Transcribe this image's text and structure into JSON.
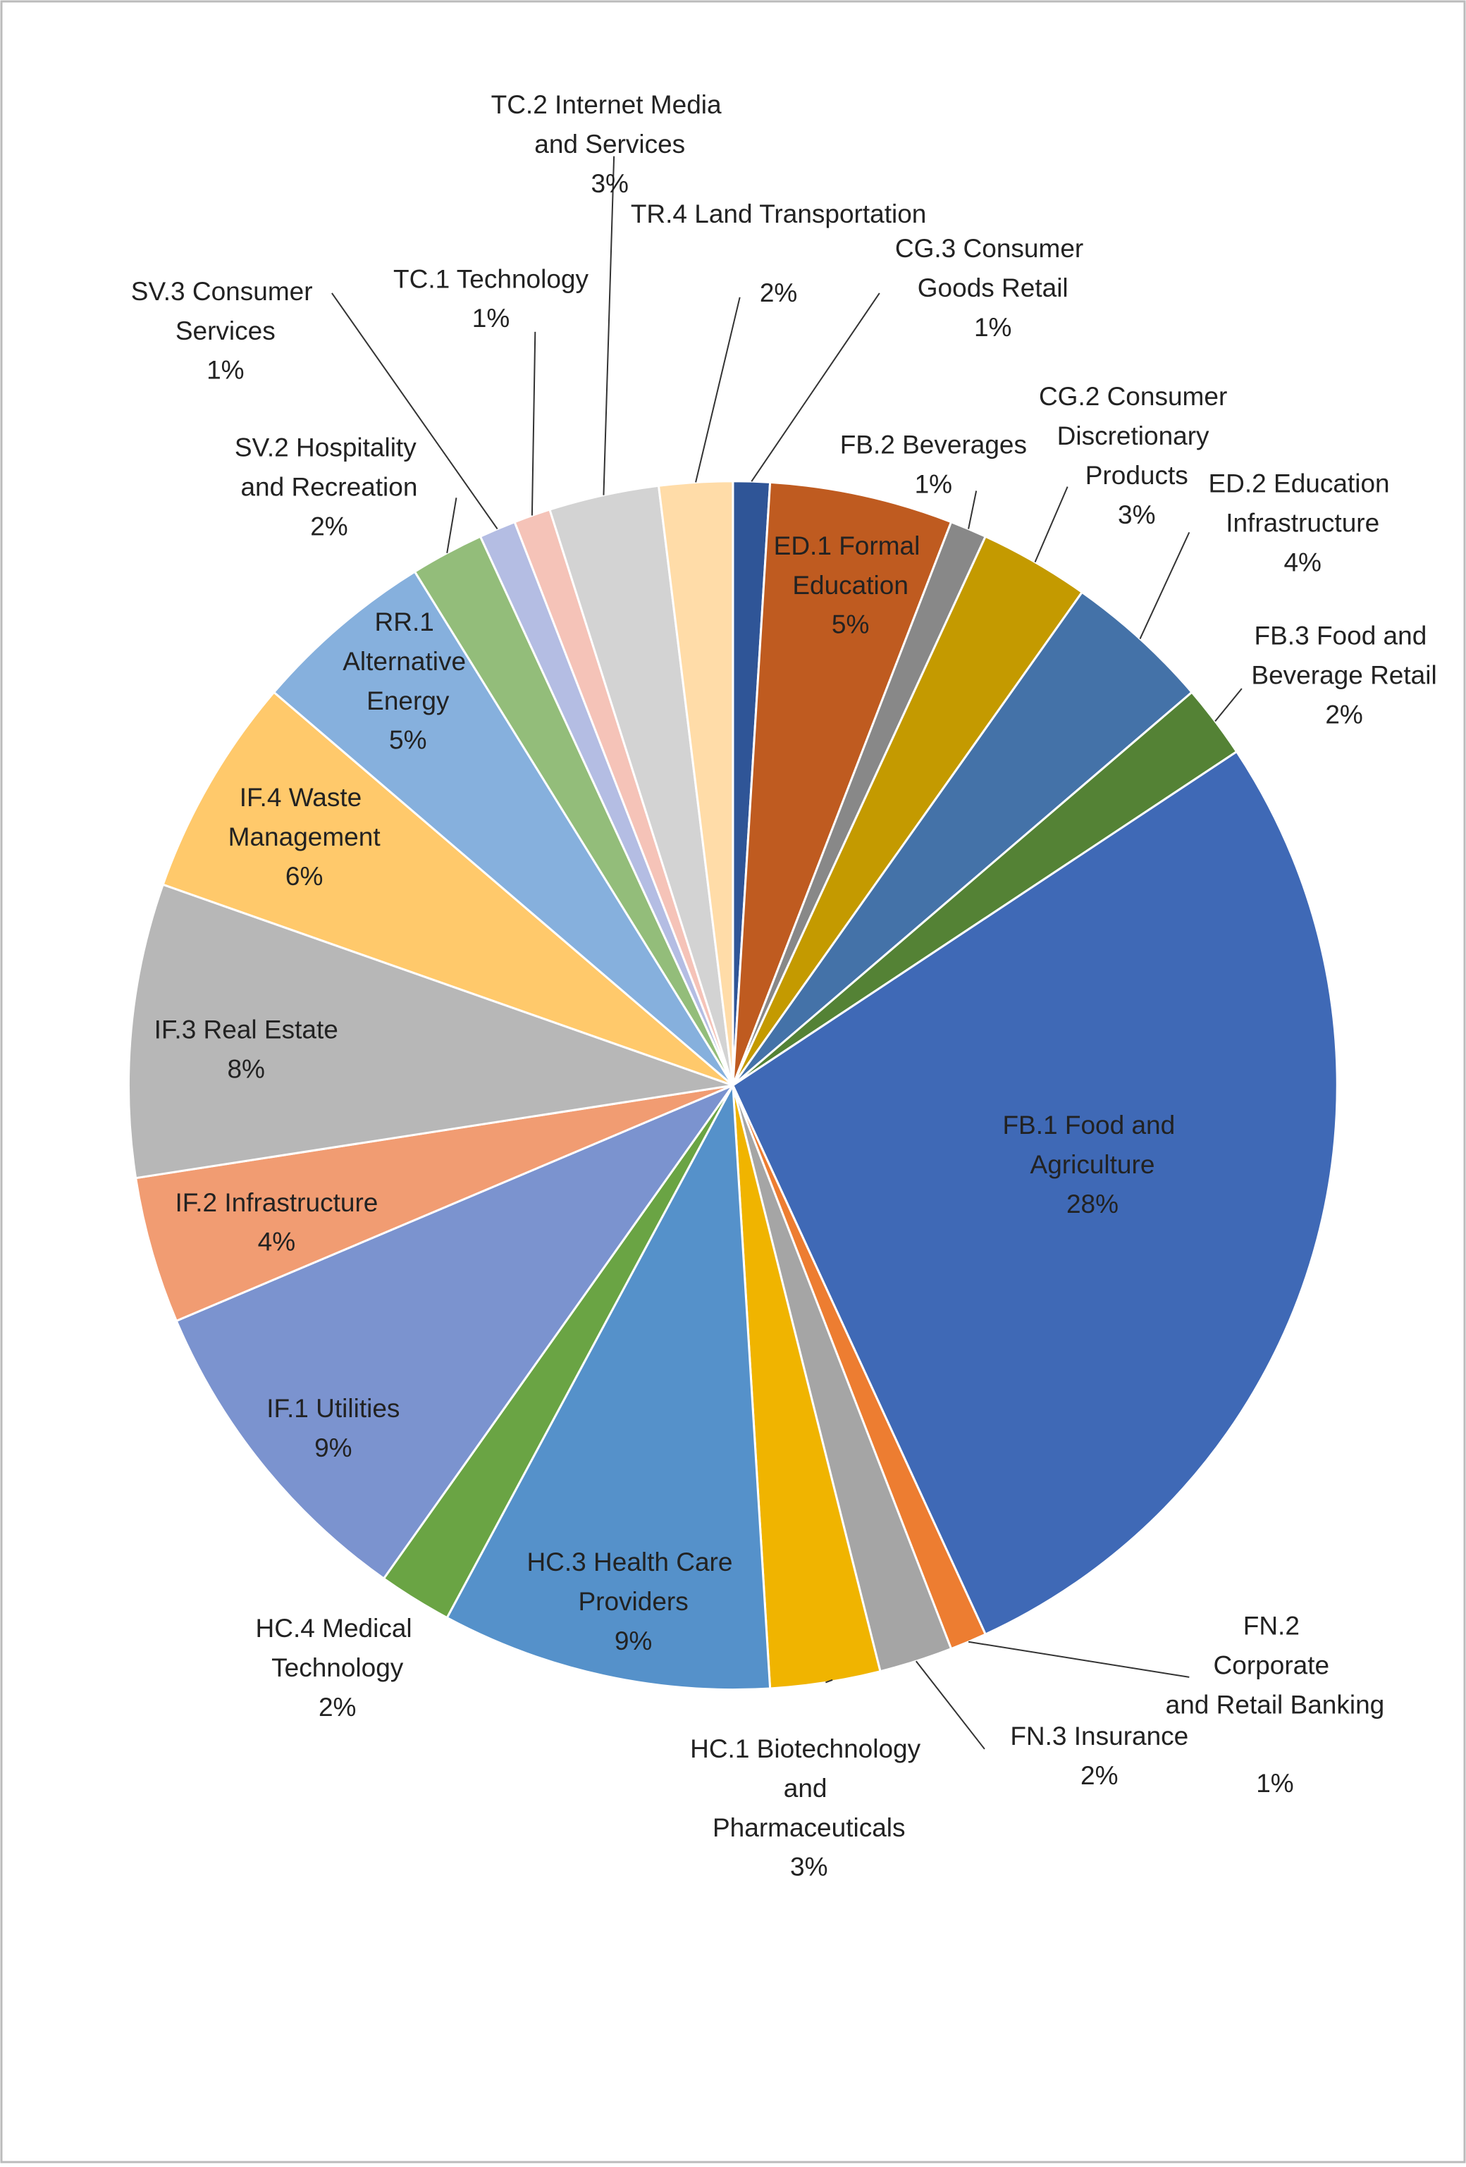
{
  "chart_data": {
    "type": "pie",
    "categories": [
      "CG.3 Consumer Goods Retail",
      "ED.1 Formal Education",
      "FB.2 Beverages",
      "CG.2 Consumer Discretionary Products",
      "ED.2 Education Infrastructure",
      "FB.3 Food and Beverage Retail",
      "FB.1 Food and Agriculture",
      "FN.2 Corporate and Retail Banking",
      "FN.3 Insurance",
      "HC.1 Biotechnology and Pharmaceuticals",
      "HC.3 Health Care Providers",
      "HC.4 Medical Technology",
      "IF.1 Utilities",
      "IF.2 Infrastructure",
      "IF.3 Real Estate",
      "IF.4 Waste Management",
      "RR.1 Alternative Energy",
      "SV.2 Hospitality and Recreation",
      "SV.3 Consumer Services",
      "TC.1 Technology",
      "TC.2 Internet Media and Services",
      "TR.4 Land Transportation"
    ],
    "values": [
      1,
      5,
      1,
      3,
      4,
      2,
      28,
      1,
      2,
      3,
      9,
      2,
      9,
      4,
      8,
      6,
      5,
      2,
      1,
      1,
      3,
      2
    ],
    "value_labels": [
      "1%",
      "5%",
      "1%",
      "3%",
      "4%",
      "2%",
      "28%",
      "1%",
      "2%",
      "3%",
      "9%",
      "2%",
      "9%",
      "4%",
      "8%",
      "6%",
      "5%",
      "2%",
      "1%",
      "1%",
      "3%",
      "2%"
    ],
    "colors": [
      "#2f5597",
      "#bf5b20",
      "#888888",
      "#c49a00",
      "#4472a8",
      "#548235",
      "#3f69b6",
      "#ed7d31",
      "#a5a5a5",
      "#f0b400",
      "#5591ca",
      "#6aa444",
      "#7b93cf",
      "#f19c72",
      "#b7b7b7",
      "#ffc96b",
      "#86b0dd",
      "#93bd7a",
      "#b4bde3",
      "#f5c3b8",
      "#d3d3d3",
      "#ffdca8"
    ]
  }
}
